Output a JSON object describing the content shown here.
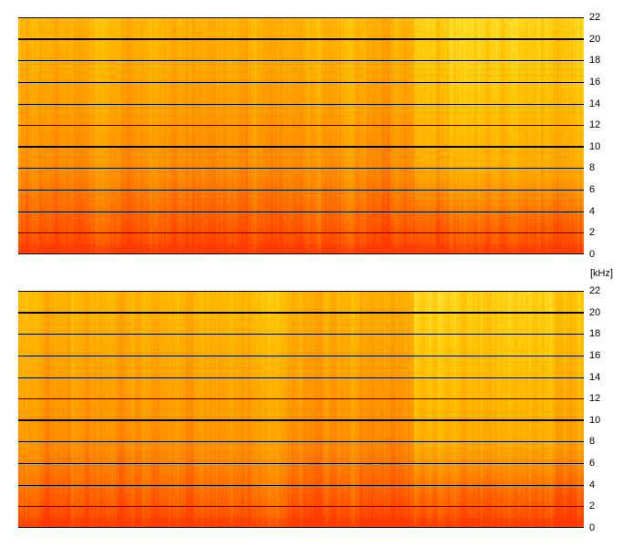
{
  "chart_data": [
    {
      "type": "heatmap",
      "title": "",
      "xlabel": "",
      "ylabel": "[kHz]",
      "ylim": [
        0,
        22
      ],
      "y_ticks": [
        "0",
        "2",
        "4",
        "6",
        "8",
        "10",
        "12",
        "14",
        "16",
        "18",
        "20",
        "22"
      ],
      "major_lines": [
        10,
        20
      ],
      "grid": true,
      "colormap": [
        "#ff3a00",
        "#ff8a00",
        "#ffc400",
        "#ffff66"
      ],
      "description_levels": [
        {
          "freq_khz": 0,
          "intensity": 0.95
        },
        {
          "freq_khz": 4,
          "intensity": 0.78
        },
        {
          "freq_khz": 8,
          "intensity": 0.62
        },
        {
          "freq_khz": 14,
          "intensity": 0.52
        },
        {
          "freq_khz": 22,
          "intensity": 0.4
        }
      ],
      "time_profile_change_at_fraction": 0.7
    },
    {
      "type": "heatmap",
      "title": "",
      "xlabel": "",
      "ylabel": "[kHz]",
      "ylim": [
        0,
        22
      ],
      "y_ticks": [
        "0",
        "2",
        "4",
        "6",
        "8",
        "10",
        "12",
        "14",
        "16",
        "18",
        "20",
        "22"
      ],
      "major_lines": [
        10,
        20
      ],
      "grid": true,
      "colormap": [
        "#ff3a00",
        "#ff8a00",
        "#ffc400",
        "#ffff66"
      ],
      "description_levels": [
        {
          "freq_khz": 0,
          "intensity": 0.95
        },
        {
          "freq_khz": 4,
          "intensity": 0.78
        },
        {
          "freq_khz": 8,
          "intensity": 0.62
        },
        {
          "freq_khz": 14,
          "intensity": 0.52
        },
        {
          "freq_khz": 22,
          "intensity": 0.4
        }
      ],
      "time_profile_change_at_fraction": 0.7
    }
  ],
  "unit_label": "[kHz]"
}
